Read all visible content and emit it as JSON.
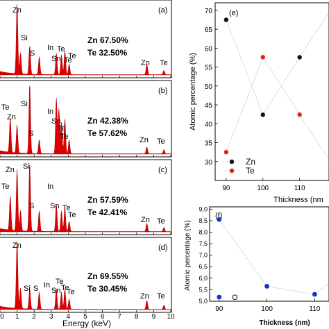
{
  "chart_data": [
    {
      "type": "area",
      "panel": "(a)",
      "peak_labels": [
        "Zn",
        "Si",
        "S",
        "In",
        "Te",
        "Sn",
        "Te",
        "Te",
        "Zn",
        "Te"
      ],
      "composition": [
        "Zn 67.50%",
        "Te 32.50%"
      ],
      "peaks": [
        [
          1.0,
          10
        ],
        [
          1.2,
          3
        ],
        [
          1.74,
          4
        ],
        [
          2.3,
          2.5
        ],
        [
          3.3,
          3
        ],
        [
          3.6,
          2.8
        ],
        [
          3.8,
          3.4
        ],
        [
          4.05,
          1.5
        ],
        [
          8.6,
          1.5
        ],
        [
          9.6,
          0.6
        ]
      ]
    },
    {
      "type": "area",
      "panel": "(b)",
      "peak_labels": [
        "Si",
        "Te",
        "Zn",
        "In",
        "Sn",
        "S",
        "Te",
        "Te",
        "Zn",
        "Te"
      ],
      "composition": [
        "Zn 42.38%",
        "Te 57.62%"
      ],
      "peaks": [
        [
          0.6,
          5
        ],
        [
          1.0,
          4
        ],
        [
          1.74,
          10
        ],
        [
          2.3,
          2
        ],
        [
          3.3,
          8
        ],
        [
          3.45,
          6.5
        ],
        [
          3.6,
          4.5
        ],
        [
          3.8,
          5
        ],
        [
          4.05,
          2
        ],
        [
          8.6,
          1
        ],
        [
          9.6,
          0.6
        ]
      ]
    },
    {
      "type": "area",
      "panel": "(c)",
      "peak_labels": [
        "Zn",
        "Si",
        "Te",
        "S",
        "In",
        "Sn",
        "Te",
        "Te",
        "Zn",
        "Te"
      ],
      "composition": [
        "Zn 57.59%",
        "Te 42.41%"
      ],
      "peaks": [
        [
          0.6,
          5
        ],
        [
          1.0,
          9
        ],
        [
          1.2,
          3
        ],
        [
          1.74,
          10
        ],
        [
          2.3,
          3
        ],
        [
          3.3,
          4
        ],
        [
          3.6,
          3
        ],
        [
          3.8,
          3.5
        ],
        [
          4.05,
          1.5
        ],
        [
          8.6,
          1.2
        ],
        [
          9.6,
          0.6
        ]
      ]
    },
    {
      "type": "area",
      "panel": "(d)",
      "peak_labels": [
        "Zn",
        "Si",
        "S",
        "In",
        "Te",
        "Sn",
        "Te",
        "Te",
        "Zn",
        "Te"
      ],
      "composition": [
        "Zn 69.55%",
        "Te 30.45%"
      ],
      "peaks": [
        [
          1.0,
          10
        ],
        [
          1.2,
          3
        ],
        [
          1.74,
          3
        ],
        [
          2.3,
          2.5
        ],
        [
          3.3,
          3
        ],
        [
          3.6,
          2.5
        ],
        [
          3.8,
          3
        ],
        [
          4.05,
          1.5
        ],
        [
          8.6,
          1.3
        ],
        [
          9.6,
          0.6
        ]
      ]
    },
    {
      "type": "scatter",
      "panel": "(e)",
      "xlabel": "Thickness (nm)",
      "ylabel": "Atomic percentage (%)",
      "xlim": [
        87,
        118
      ],
      "ylim": [
        25,
        72
      ],
      "xticks": [
        90,
        100,
        110
      ],
      "yticks": [
        30,
        35,
        40,
        45,
        50,
        55,
        60,
        65,
        70
      ],
      "series": [
        {
          "name": "Zn",
          "x": [
            90,
            100,
            110,
            118
          ],
          "y": [
            67.5,
            42.38,
            57.59,
            69.55
          ]
        },
        {
          "name": "Te",
          "x": [
            90,
            100,
            110,
            118
          ],
          "y": [
            32.5,
            57.62,
            42.41,
            30.45
          ]
        }
      ]
    },
    {
      "type": "scatter",
      "panel": "(f)",
      "xlabel": "Thickness (nm)",
      "ylabel": "Atomic percentage (%)",
      "xlim": [
        88,
        113
      ],
      "ylim": [
        5.0,
        9.1
      ],
      "xticks": [
        90,
        100,
        110
      ],
      "yticks": [
        5.0,
        5.5,
        6.0,
        6.5,
        7.0,
        7.5,
        8.0,
        8.5,
        9.0
      ],
      "series": [
        {
          "name": "O",
          "x": [
            90,
            100,
            110,
            113
          ],
          "y": [
            8.55,
            5.65,
            5.3,
            5.8
          ]
        }
      ]
    }
  ],
  "text": {
    "energy_axis_label": "Energy (keV)",
    "energy_ticks": [
      "0",
      "1",
      "2",
      "3",
      "4",
      "5",
      "6",
      "7",
      "8",
      "9",
      "10"
    ],
    "legend_zn": "Zn",
    "legend_te": "Te",
    "legend_o": "O",
    "e_xlabel": "Thickness (nm",
    "f_xlabel": "Thickness (nm)"
  },
  "colors": {
    "spectrum_fill": "#dd0000",
    "zn_marker": "#111111",
    "te_marker": "#e02020",
    "o_marker": "#1a2fd0"
  }
}
